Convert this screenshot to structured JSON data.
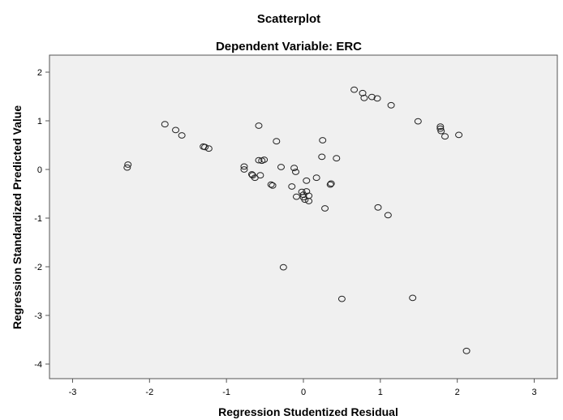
{
  "chart_data": {
    "type": "scatter",
    "title": "Scatterplot",
    "subtitle": "Dependent Variable: ERC",
    "xlabel": "Regression Studentized Residual",
    "ylabel": "Regression Standardized Predicted Value",
    "xlim": [
      -3.3,
      3.3
    ],
    "ylim": [
      -4.3,
      2.35
    ],
    "xticks": [
      -3,
      -2,
      -1,
      0,
      1,
      2,
      3
    ],
    "yticks": [
      2,
      1,
      0,
      -1,
      -2,
      -3,
      -4
    ],
    "grid": false,
    "plot_background": "#f0f0f0",
    "marker": "hollow-circle",
    "series": [
      {
        "points": [
          [
            -2.28,
            0.1
          ],
          [
            -2.29,
            0.04
          ],
          [
            -1.8,
            0.93
          ],
          [
            -1.66,
            0.81
          ],
          [
            -1.58,
            0.7
          ],
          [
            -1.3,
            0.47
          ],
          [
            -1.28,
            0.46
          ],
          [
            -1.23,
            0.43
          ],
          [
            -0.77,
            0.06
          ],
          [
            -0.77,
            0.0
          ],
          [
            -0.67,
            -0.1
          ],
          [
            -0.66,
            -0.12
          ],
          [
            -0.63,
            -0.17
          ],
          [
            -0.58,
            0.9
          ],
          [
            -0.58,
            0.19
          ],
          [
            -0.54,
            0.18
          ],
          [
            -0.51,
            0.2
          ],
          [
            -0.56,
            -0.12
          ],
          [
            -0.42,
            -0.31
          ],
          [
            -0.4,
            -0.33
          ],
          [
            -0.35,
            0.58
          ],
          [
            -0.29,
            0.05
          ],
          [
            -0.26,
            -2.01
          ],
          [
            -0.15,
            -0.35
          ],
          [
            -0.12,
            0.03
          ],
          [
            -0.1,
            -0.05
          ],
          [
            -0.09,
            -0.56
          ],
          [
            -0.02,
            -0.46
          ],
          [
            0.0,
            -0.52
          ],
          [
            0.0,
            -0.57
          ],
          [
            0.02,
            -0.62
          ],
          [
            0.04,
            -0.45
          ],
          [
            0.04,
            -0.23
          ],
          [
            0.07,
            -0.54
          ],
          [
            0.07,
            -0.65
          ],
          [
            0.17,
            -0.17
          ],
          [
            0.24,
            0.26
          ],
          [
            0.25,
            0.6
          ],
          [
            0.28,
            -0.8
          ],
          [
            0.35,
            -0.31
          ],
          [
            0.36,
            -0.29
          ],
          [
            0.43,
            0.23
          ],
          [
            0.5,
            -2.66
          ],
          [
            0.66,
            1.64
          ],
          [
            0.77,
            1.57
          ],
          [
            0.79,
            1.47
          ],
          [
            0.89,
            1.49
          ],
          [
            0.96,
            1.46
          ],
          [
            0.97,
            -0.78
          ],
          [
            1.1,
            -0.94
          ],
          [
            1.14,
            1.32
          ],
          [
            1.42,
            -2.64
          ],
          [
            1.49,
            0.99
          ],
          [
            1.78,
            0.88
          ],
          [
            1.78,
            0.84
          ],
          [
            1.79,
            0.79
          ],
          [
            1.84,
            0.68
          ],
          [
            2.02,
            0.71
          ],
          [
            2.12,
            -3.73
          ]
        ]
      }
    ]
  }
}
